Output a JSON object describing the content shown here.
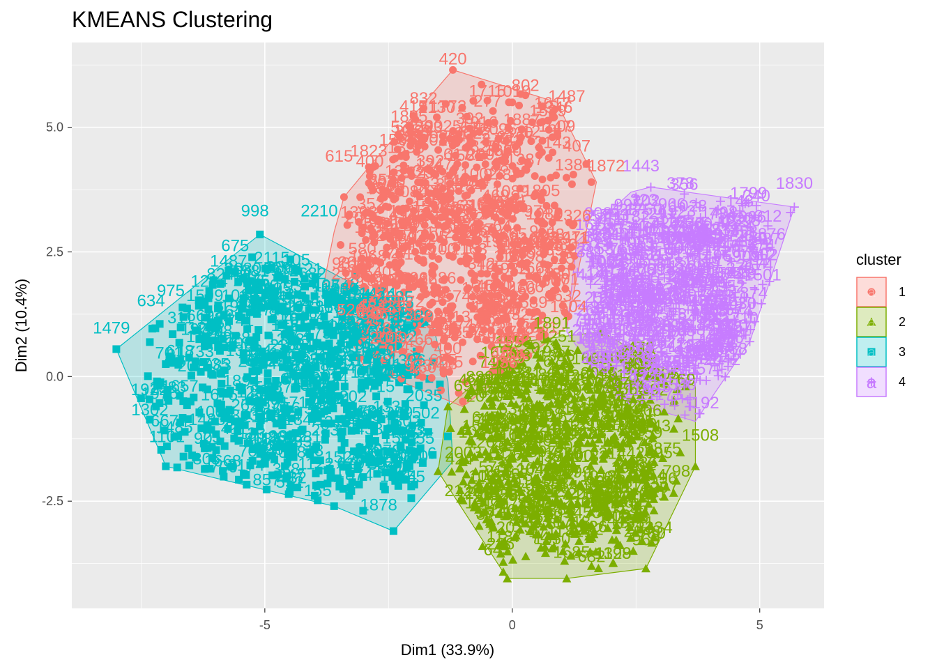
{
  "chart_data": {
    "type": "scatter",
    "title": "KMEANS Clustering",
    "xlabel": "Dim1 (33.9%)",
    "ylabel": "Dim2 (10.4%)",
    "xlim": [
      -8.9,
      6.3
    ],
    "ylim": [
      -4.65,
      6.7
    ],
    "x_ticks": [
      -5,
      0,
      5
    ],
    "x_tick_labels": [
      "-5",
      "0",
      "5"
    ],
    "y_ticks": [
      -2.5,
      0,
      2.5,
      5
    ],
    "y_tick_labels": [
      "-2.5",
      "0.0",
      "2.5",
      "5.0"
    ],
    "grid": true,
    "legend": {
      "title": "cluster",
      "position": "right"
    },
    "series": [
      {
        "name": "1",
        "color": "#F8766D",
        "shape": "circle",
        "hull": [
          [
            -1.2,
            6.15
          ],
          [
            0.9,
            5.5
          ],
          [
            1.7,
            3.9
          ],
          [
            1.1,
            1.0
          ],
          [
            -1.0,
            -0.6
          ],
          [
            -3.0,
            0.2
          ],
          [
            -3.8,
            1.9
          ],
          [
            -3.6,
            2.9
          ],
          [
            -3.4,
            3.6
          ],
          [
            -2.9,
            4.2
          ]
        ],
        "points": [
          [
            -1.2,
            6.15
          ],
          [
            0.0,
            5.5
          ],
          [
            -1.4,
            4.7
          ],
          [
            0.4,
            5.1
          ],
          [
            -2.9,
            4.2
          ],
          [
            1.6,
            3.9
          ],
          [
            0.6,
            4.5
          ],
          [
            -3.4,
            3.6
          ],
          [
            -1.8,
            3.2
          ],
          [
            -0.5,
            3.6
          ],
          [
            0.9,
            3.2
          ],
          [
            -2.6,
            2.8
          ],
          [
            -1.2,
            2.4
          ],
          [
            0.2,
            2.5
          ],
          [
            1.2,
            2.2
          ],
          [
            -3.0,
            2.1
          ],
          [
            -2.0,
            1.8
          ],
          [
            -0.8,
            1.6
          ],
          [
            0.5,
            1.3
          ],
          [
            -2.5,
            0.9
          ],
          [
            -1.3,
            0.6
          ],
          [
            -0.1,
            0.8
          ],
          [
            -1.0,
            -0.5
          ],
          [
            -0.4,
            0.1
          ],
          [
            -1.7,
            1.2
          ]
        ],
        "labels": [
          {
            "text": "420",
            "x": -1.2,
            "y": 6.15
          },
          {
            "text": "1010",
            "x": 0.0,
            "y": 5.5
          },
          {
            "text": "1487",
            "x": 1.1,
            "y": 5.4
          },
          {
            "text": "277",
            "x": -0.5,
            "y": 5.3
          },
          {
            "text": "1772",
            "x": -1.3,
            "y": 5.2
          },
          {
            "text": "1509",
            "x": 0.9,
            "y": 4.8
          },
          {
            "text": "2025",
            "x": -1.4,
            "y": 4.8
          },
          {
            "text": "46",
            "x": -0.6,
            "y": 4.8
          },
          {
            "text": "1823",
            "x": -2.9,
            "y": 4.3
          },
          {
            "text": "615",
            "x": -3.5,
            "y": 4.2
          },
          {
            "text": "407",
            "x": 1.3,
            "y": 4.4
          },
          {
            "text": "1313",
            "x": -2.2,
            "y": 3.9
          },
          {
            "text": "1872",
            "x": 1.9,
            "y": 4.0
          }
        ]
      },
      {
        "name": "2",
        "color": "#7CAE00",
        "shape": "triangle",
        "hull": [
          [
            -0.1,
            -4.05
          ],
          [
            1.1,
            -4.05
          ],
          [
            2.7,
            -3.85
          ],
          [
            3.7,
            -1.8
          ],
          [
            3.7,
            -0.2
          ],
          [
            1.8,
            0.9
          ],
          [
            0.2,
            0.7
          ],
          [
            -1.3,
            -0.6
          ],
          [
            -1.5,
            -1.9
          ]
        ],
        "points": [
          [
            -0.1,
            -4.05
          ],
          [
            1.1,
            -4.05
          ],
          [
            2.7,
            -3.85
          ],
          [
            3.7,
            -1.8
          ],
          [
            3.5,
            -0.2
          ],
          [
            1.8,
            0.9
          ],
          [
            0.3,
            0.7
          ],
          [
            -1.3,
            -0.6
          ],
          [
            -1.5,
            -1.9
          ],
          [
            0.5,
            -1.2
          ],
          [
            1.4,
            -2.2
          ],
          [
            2.2,
            -1.4
          ],
          [
            -0.5,
            -2.4
          ],
          [
            0.8,
            -3.2
          ],
          [
            2.5,
            -2.8
          ],
          [
            1.0,
            0.0
          ],
          [
            -0.8,
            -0.3
          ],
          [
            0.0,
            -1.6
          ],
          [
            1.8,
            -0.6
          ],
          [
            -0.6,
            -3.4
          ]
        ],
        "labels": [
          {
            "text": "1891",
            "x": 0.8,
            "y": 0.85
          },
          {
            "text": "2207",
            "x": 2.0,
            "y": -0.35
          },
          {
            "text": "1508",
            "x": 3.8,
            "y": -1.4
          },
          {
            "text": "969",
            "x": 2.7,
            "y": -3.5
          },
          {
            "text": "643",
            "x": -0.3,
            "y": -3.7
          },
          {
            "text": "1685",
            "x": 1.2,
            "y": -3.75
          },
          {
            "text": "146",
            "x": -0.2,
            "y": -2.9
          }
        ]
      },
      {
        "name": "3",
        "color": "#00BFC4",
        "shape": "square",
        "hull": [
          [
            -8.0,
            0.55
          ],
          [
            -7.0,
            -1.8
          ],
          [
            -3.6,
            -2.6
          ],
          [
            -2.4,
            -3.1
          ],
          [
            -1.2,
            -1.7
          ],
          [
            -1.3,
            -0.1
          ],
          [
            -1.6,
            1.0
          ],
          [
            -3.3,
            1.9
          ],
          [
            -5.1,
            2.85
          ],
          [
            -5.8,
            2.3
          ]
        ],
        "points": [
          [
            -8.0,
            0.55
          ],
          [
            -7.0,
            -1.8
          ],
          [
            -3.6,
            -2.6
          ],
          [
            -2.4,
            -3.1
          ],
          [
            -5.1,
            2.85
          ],
          [
            -5.6,
            2.1
          ],
          [
            -6.2,
            0.8
          ],
          [
            -6.8,
            0.3
          ],
          [
            -7.2,
            -0.6
          ],
          [
            -5.5,
            -0.9
          ],
          [
            -4.8,
            -0.2
          ],
          [
            -4.2,
            0.6
          ],
          [
            -3.5,
            1.0
          ],
          [
            -2.8,
            0.1
          ],
          [
            -2.2,
            -0.8
          ],
          [
            -3.2,
            -1.5
          ],
          [
            -4.5,
            -1.6
          ],
          [
            -5.9,
            -1.3
          ],
          [
            -6.5,
            -0.5
          ],
          [
            -5.0,
            0.4
          ],
          [
            -3.8,
            -0.7
          ],
          [
            -2.6,
            -2.2
          ],
          [
            -4.4,
            1.9
          ],
          [
            -1.6,
            0.3
          ],
          [
            -1.3,
            -1.2
          ]
        ],
        "labels": [
          {
            "text": "998",
            "x": -5.2,
            "y": 3.1
          },
          {
            "text": "2210",
            "x": -3.9,
            "y": 3.1
          },
          {
            "text": "675",
            "x": -5.6,
            "y": 2.4
          },
          {
            "text": "912",
            "x": -4.6,
            "y": 1.9
          },
          {
            "text": "1040",
            "x": -5.5,
            "y": 1.4
          },
          {
            "text": "975",
            "x": -6.9,
            "y": 1.5
          },
          {
            "text": "634",
            "x": -7.3,
            "y": 1.3
          },
          {
            "text": "669",
            "x": -6.3,
            "y": 1.0
          },
          {
            "text": "741",
            "x": -5.5,
            "y": 0.9
          },
          {
            "text": "1479",
            "x": -8.1,
            "y": 0.75
          },
          {
            "text": "1878",
            "x": -2.7,
            "y": -2.8
          }
        ]
      },
      {
        "name": "4",
        "color": "#C77CFF",
        "shape": "plus",
        "hull": [
          [
            5.7,
            3.4
          ],
          [
            4.8,
            0.7
          ],
          [
            3.7,
            -0.9
          ],
          [
            2.0,
            -0.4
          ],
          [
            1.1,
            0.9
          ],
          [
            1.3,
            2.7
          ],
          [
            2.4,
            3.7
          ],
          [
            2.8,
            3.8
          ]
        ],
        "points": [
          [
            5.7,
            3.4
          ],
          [
            4.8,
            0.7
          ],
          [
            2.8,
            3.8
          ],
          [
            2.5,
            3.6
          ],
          [
            3.4,
            3.4
          ],
          [
            2.3,
            2.8
          ],
          [
            3.2,
            2.2
          ],
          [
            2.0,
            1.9
          ],
          [
            1.5,
            1.4
          ],
          [
            2.6,
            1.2
          ],
          [
            3.5,
            0.9
          ],
          [
            2.9,
            0.3
          ],
          [
            3.6,
            -0.6
          ],
          [
            2.2,
            0.5
          ],
          [
            1.6,
            2.4
          ],
          [
            4.0,
            1.6
          ]
        ],
        "labels": [
          {
            "text": "1830",
            "x": 5.7,
            "y": 3.65
          },
          {
            "text": "1443",
            "x": 2.6,
            "y": 4.0
          },
          {
            "text": "378",
            "x": 3.4,
            "y": 3.65
          },
          {
            "text": "202",
            "x": 2.7,
            "y": 3.3
          },
          {
            "text": "959",
            "x": 3.8,
            "y": 2.5
          },
          {
            "text": "1710",
            "x": 4.6,
            "y": 0.95
          },
          {
            "text": "192",
            "x": 3.9,
            "y": -0.75
          },
          {
            "text": "1162",
            "x": 3.7,
            "y": 0.25
          }
        ]
      }
    ]
  }
}
